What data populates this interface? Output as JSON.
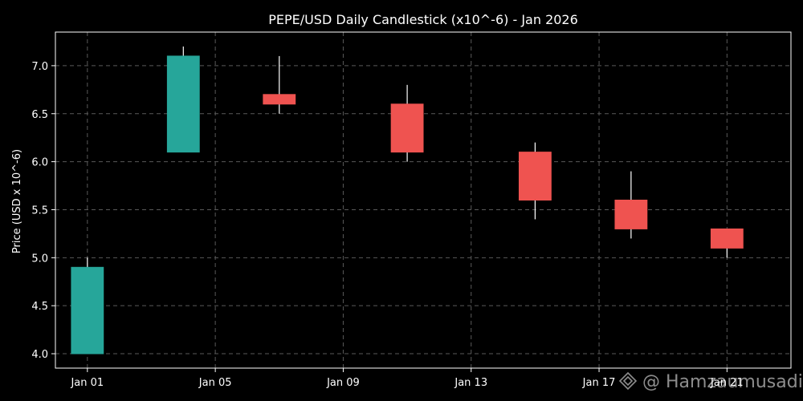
{
  "chart_data": {
    "type": "candlestick",
    "title": "PEPE/USD Daily Candlestick (x10^-6) - Jan 2026",
    "xlabel": "",
    "ylabel": "Price (USD x 10^-6)",
    "x_range": [
      "2025-12-31",
      "2026-01-23"
    ],
    "ylim": [
      3.85,
      7.35
    ],
    "yticks": [
      4.0,
      4.5,
      5.0,
      5.5,
      6.0,
      6.5,
      7.0
    ],
    "ytick_labels": [
      "4.0",
      "4.5",
      "5.0",
      "5.5",
      "6.0",
      "6.5",
      "7.0"
    ],
    "xticks": [
      "2026-01-01",
      "2026-01-05",
      "2026-01-09",
      "2026-01-13",
      "2026-01-17",
      "2026-01-21"
    ],
    "xtick_labels": [
      "Jan 01",
      "Jan 05",
      "Jan 09",
      "Jan 13",
      "Jan 17",
      "Jan 21"
    ],
    "grid": true,
    "colors": {
      "up": "#26a69a",
      "down": "#ef5350",
      "wick": "#ffffff"
    },
    "candles": [
      {
        "date": "2026-01-01",
        "open": 4.0,
        "high": 5.0,
        "low": 4.0,
        "close": 4.9
      },
      {
        "date": "2026-01-04",
        "open": 6.1,
        "high": 7.2,
        "low": 6.1,
        "close": 7.1
      },
      {
        "date": "2026-01-07",
        "open": 6.7,
        "high": 7.1,
        "low": 6.5,
        "close": 6.6
      },
      {
        "date": "2026-01-11",
        "open": 6.6,
        "high": 6.8,
        "low": 6.0,
        "close": 6.1
      },
      {
        "date": "2026-01-15",
        "open": 6.1,
        "high": 6.2,
        "low": 5.4,
        "close": 5.6
      },
      {
        "date": "2026-01-18",
        "open": 5.6,
        "high": 5.9,
        "low": 5.2,
        "close": 5.3
      },
      {
        "date": "2026-01-21",
        "open": 5.3,
        "high": 5.3,
        "low": 5.0,
        "close": 5.1
      }
    ]
  },
  "watermark": {
    "text": "@ Hamzaumusadi",
    "icon": "logo-icon"
  }
}
